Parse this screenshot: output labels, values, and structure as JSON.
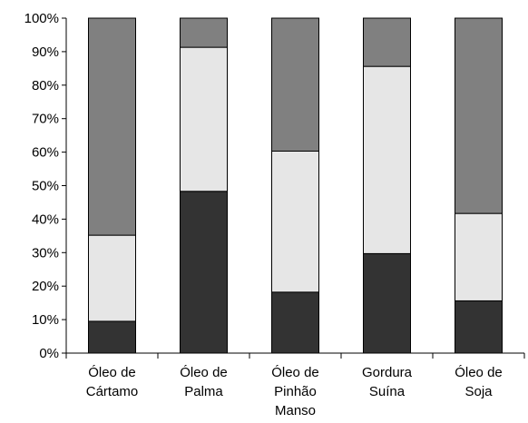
{
  "chart_data": {
    "type": "bar",
    "stacked": true,
    "normalized_percent": true,
    "categories": [
      [
        "Óleo de",
        "Cártamo"
      ],
      [
        "Óleo de",
        "Palma"
      ],
      [
        "Óleo de",
        "Pinhão",
        "Manso"
      ],
      [
        "Gordura",
        "Suína"
      ],
      [
        "Óleo de",
        "Soja"
      ]
    ],
    "series": [
      {
        "values": [
          9.5,
          48.3,
          18.2,
          29.7,
          15.6
        ],
        "color": "#333333"
      },
      {
        "values": [
          25.7,
          43.0,
          42.1,
          55.9,
          26.1
        ],
        "color": "#e6e6e6"
      },
      {
        "values": [
          64.8,
          8.7,
          39.7,
          14.4,
          58.3
        ],
        "color": "#808080"
      }
    ],
    "ylim": [
      0,
      100
    ],
    "yticks": [
      "0%",
      "10%",
      "20%",
      "30%",
      "40%",
      "50%",
      "60%",
      "70%",
      "80%",
      "90%",
      "100%"
    ],
    "title": "",
    "xlabel": "",
    "ylabel": "",
    "grid": false,
    "legend": "none"
  }
}
